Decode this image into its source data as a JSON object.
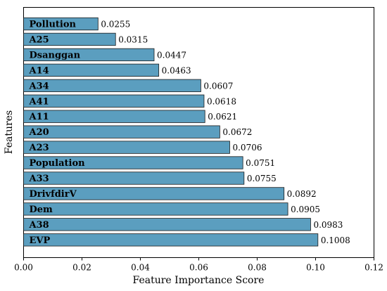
{
  "chart_data": {
    "type": "bar",
    "orientation": "horizontal",
    "xlabel": "Feature Importance Score",
    "ylabel": "Features",
    "xlim": [
      0.0,
      0.12
    ],
    "xticks": [
      0.0,
      0.02,
      0.04,
      0.06,
      0.08,
      0.1,
      0.12
    ],
    "xtick_labels": [
      "0.00",
      "0.02",
      "0.04",
      "0.06",
      "0.08",
      "0.10",
      "0.12"
    ],
    "grid": false,
    "bar_color": "#5b9ebf",
    "categories": [
      "Pollution",
      "A25",
      "Dsanggan",
      "A14",
      "A34",
      "A41",
      "A11",
      "A20",
      "A23",
      "Population",
      "A33",
      "DrivfdirV",
      "Dem",
      "A38",
      "EVP"
    ],
    "values": [
      0.0255,
      0.0315,
      0.0447,
      0.0463,
      0.0607,
      0.0618,
      0.0621,
      0.0672,
      0.0706,
      0.0751,
      0.0755,
      0.0892,
      0.0905,
      0.0983,
      0.1008
    ],
    "value_labels": [
      "0.0255",
      "0.0315",
      "0.0447",
      "0.0463",
      "0.0607",
      "0.0618",
      "0.0621",
      "0.0672",
      "0.0706",
      "0.0751",
      "0.0755",
      "0.0892",
      "0.0905",
      "0.0983",
      "0.1008"
    ]
  }
}
